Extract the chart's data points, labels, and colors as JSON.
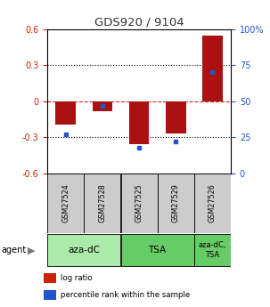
{
  "title": "GDS920 / 9104",
  "categories": [
    "GSM27524",
    "GSM27528",
    "GSM27525",
    "GSM27529",
    "GSM27526"
  ],
  "log_ratios": [
    -0.19,
    -0.08,
    -0.36,
    -0.27,
    0.55
  ],
  "percentile_ranks": [
    27,
    47,
    18,
    22,
    70
  ],
  "bar_color": "#aa1111",
  "dot_color": "#2255cc",
  "ylim_left": [
    -0.6,
    0.6
  ],
  "ylim_right": [
    0,
    100
  ],
  "yticks_left": [
    -0.6,
    -0.3,
    0.0,
    0.3,
    0.6
  ],
  "ytick_labels_left": [
    "-0.6",
    "-0.3",
    "0",
    "0.3",
    "0.6"
  ],
  "yticks_right": [
    0,
    25,
    50,
    75,
    100
  ],
  "ytick_labels_right": [
    "0",
    "25",
    "50",
    "75",
    "100%"
  ],
  "agent_groups": [
    {
      "label": "aza-dC",
      "start": 0,
      "end": 1,
      "color": "#aaeaaa"
    },
    {
      "label": "TSA",
      "start": 2,
      "end": 3,
      "color": "#66cc66"
    },
    {
      "label": "aza-dC,\nTSA",
      "start": 4,
      "end": 4,
      "color": "#66cc66"
    }
  ],
  "legend_entries": [
    {
      "color": "#cc2200",
      "label": "log ratio"
    },
    {
      "color": "#2255cc",
      "label": "percentile rank within the sample"
    }
  ],
  "bar_width": 0.55,
  "zero_line_color": "#dd2222",
  "background_color": "#ffffff",
  "sample_label_bg": "#cccccc",
  "title_color": "#333333",
  "left_tick_color": "#cc2200",
  "right_tick_color": "#2255cc"
}
